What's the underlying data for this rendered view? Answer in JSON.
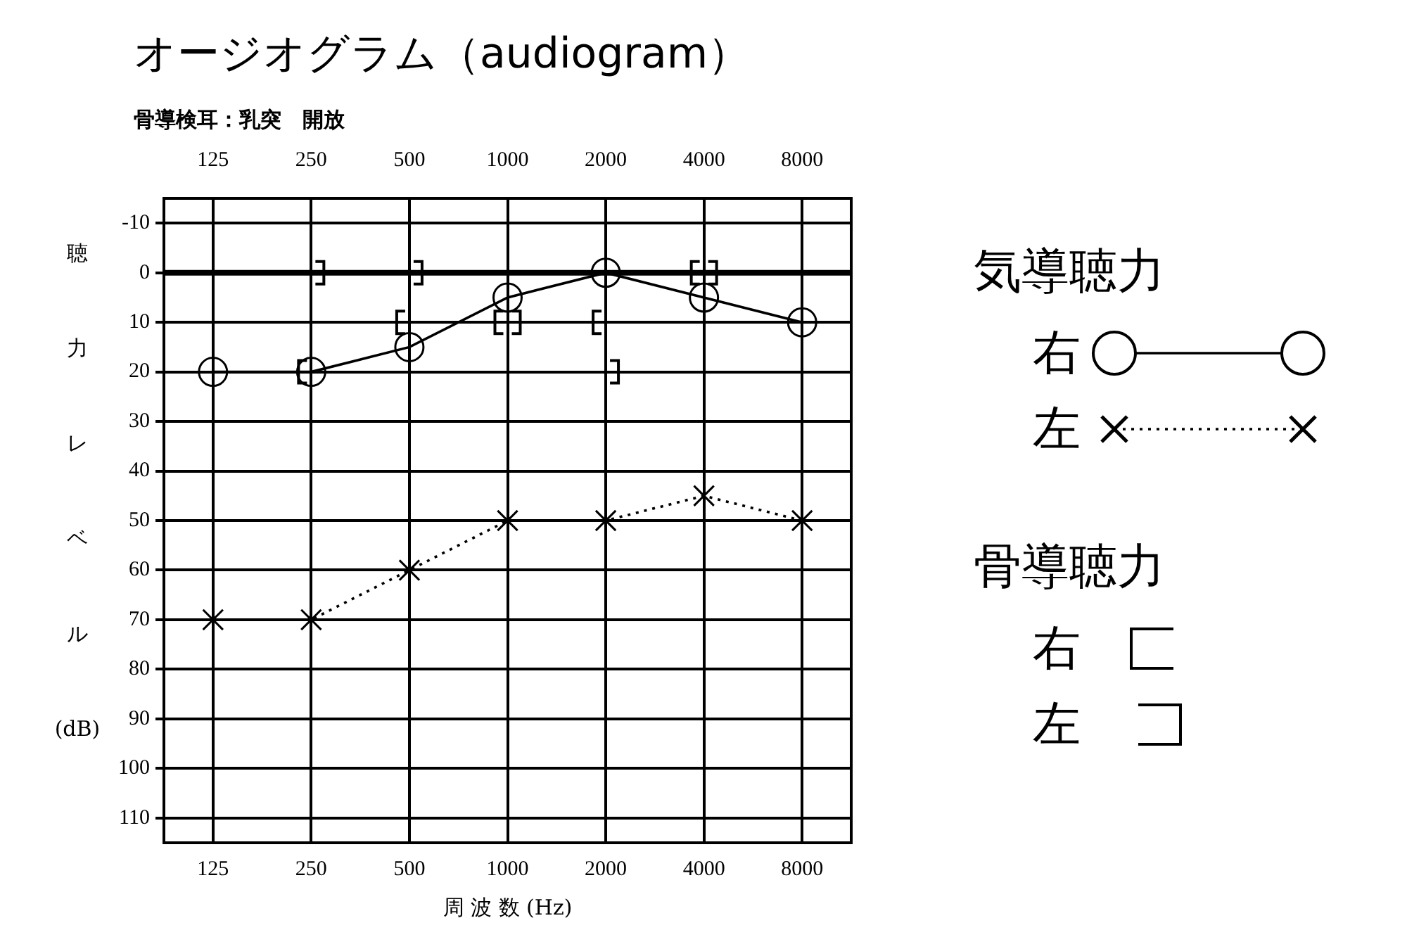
{
  "chart_data": {
    "type": "line",
    "title": "オージオグラム（audiogram）",
    "subtitle": "骨導検耳：乳突　開放",
    "xlabel": "周 波 数 (Hz)",
    "ylabel": "聴力レベル(dB)",
    "categories": [
      "125",
      "250",
      "500",
      "1000",
      "2000",
      "4000",
      "8000"
    ],
    "ylim": [
      115,
      -15
    ],
    "yticks": [
      -10,
      0,
      10,
      20,
      30,
      40,
      50,
      60,
      70,
      80,
      90,
      100,
      110
    ],
    "grid": true,
    "legend": "right",
    "ref_lines": [
      {
        "axis": "y",
        "value": 0
      }
    ],
    "annotations": [
      "気導聴力",
      "骨導聴力"
    ],
    "series": [
      {
        "name": "右",
        "color": "#000000",
        "marker": "circle",
        "line_style": "solid",
        "values": [
          20,
          20,
          15,
          5,
          0,
          5,
          10
        ]
      },
      {
        "name": "左",
        "color": "#000000",
        "marker": "cross",
        "line_style": "dotted",
        "values": [
          70,
          70,
          60,
          50,
          50,
          45,
          50
        ]
      },
      {
        "name": "右",
        "type": "scatter",
        "color": "#000000",
        "values": [
          null,
          20,
          10,
          10,
          10,
          0,
          null
        ]
      },
      {
        "name": "左",
        "type": "scatter",
        "color": "#000000",
        "values": [
          null,
          0,
          0,
          10,
          20,
          0,
          null
        ]
      }
    ]
  }
}
